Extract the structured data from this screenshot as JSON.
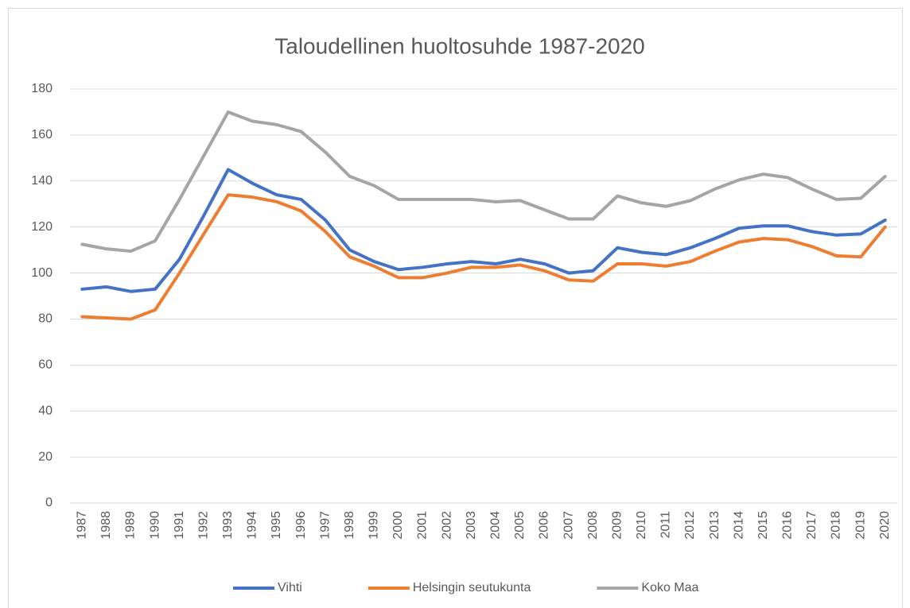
{
  "chart_data": {
    "type": "line",
    "title": "Taloudellinen huoltosuhde 1987-2020",
    "categories": [
      "1987",
      "1988",
      "1989",
      "1990",
      "1991",
      "1992",
      "1993",
      "1994",
      "1995",
      "1996",
      "1997",
      "1998",
      "1999",
      "2000",
      "2001",
      "2002",
      "2003",
      "2004",
      "2005",
      "2006",
      "2007",
      "2008",
      "2009",
      "2010",
      "2011",
      "2012",
      "2013",
      "2014",
      "2015",
      "2016",
      "2017",
      "2018",
      "2019",
      "2020"
    ],
    "series": [
      {
        "name": "Vihti",
        "color": "#4472c4",
        "values": [
          93,
          94,
          92,
          93,
          106,
          125,
          145,
          139,
          134,
          132,
          123,
          110,
          105,
          101.5,
          102.5,
          104,
          105,
          104,
          106,
          104,
          100,
          101,
          111,
          109,
          108,
          111,
          115,
          119.5,
          120.5,
          120.5,
          118,
          116.5,
          117,
          123
        ]
      },
      {
        "name": "Helsingin seutukunta",
        "color": "#ed7d31",
        "values": [
          81,
          80.5,
          80,
          84,
          100,
          117,
          134,
          133,
          131,
          127,
          118,
          107,
          103,
          98,
          98,
          100,
          102.5,
          102.5,
          103.5,
          101,
          97,
          96.5,
          104,
          104,
          103,
          105,
          109.5,
          113.5,
          115,
          114.5,
          111.5,
          107.5,
          107,
          120
        ]
      },
      {
        "name": "Koko Maa",
        "color": "#a5a5a5",
        "values": [
          112.5,
          110.5,
          109.5,
          114,
          132,
          151,
          170,
          166,
          164.5,
          161.5,
          152.5,
          142,
          138,
          132,
          132,
          132,
          132,
          131,
          131.5,
          127.5,
          123.5,
          123.5,
          133.5,
          130.5,
          129,
          131.5,
          136.5,
          140.5,
          143,
          141.5,
          136.5,
          132,
          132.5,
          142
        ]
      }
    ],
    "ylim": [
      0,
      180
    ],
    "yticks": [
      0,
      20,
      40,
      60,
      80,
      100,
      120,
      140,
      160,
      180
    ],
    "grid": true,
    "legend": "bottom"
  }
}
